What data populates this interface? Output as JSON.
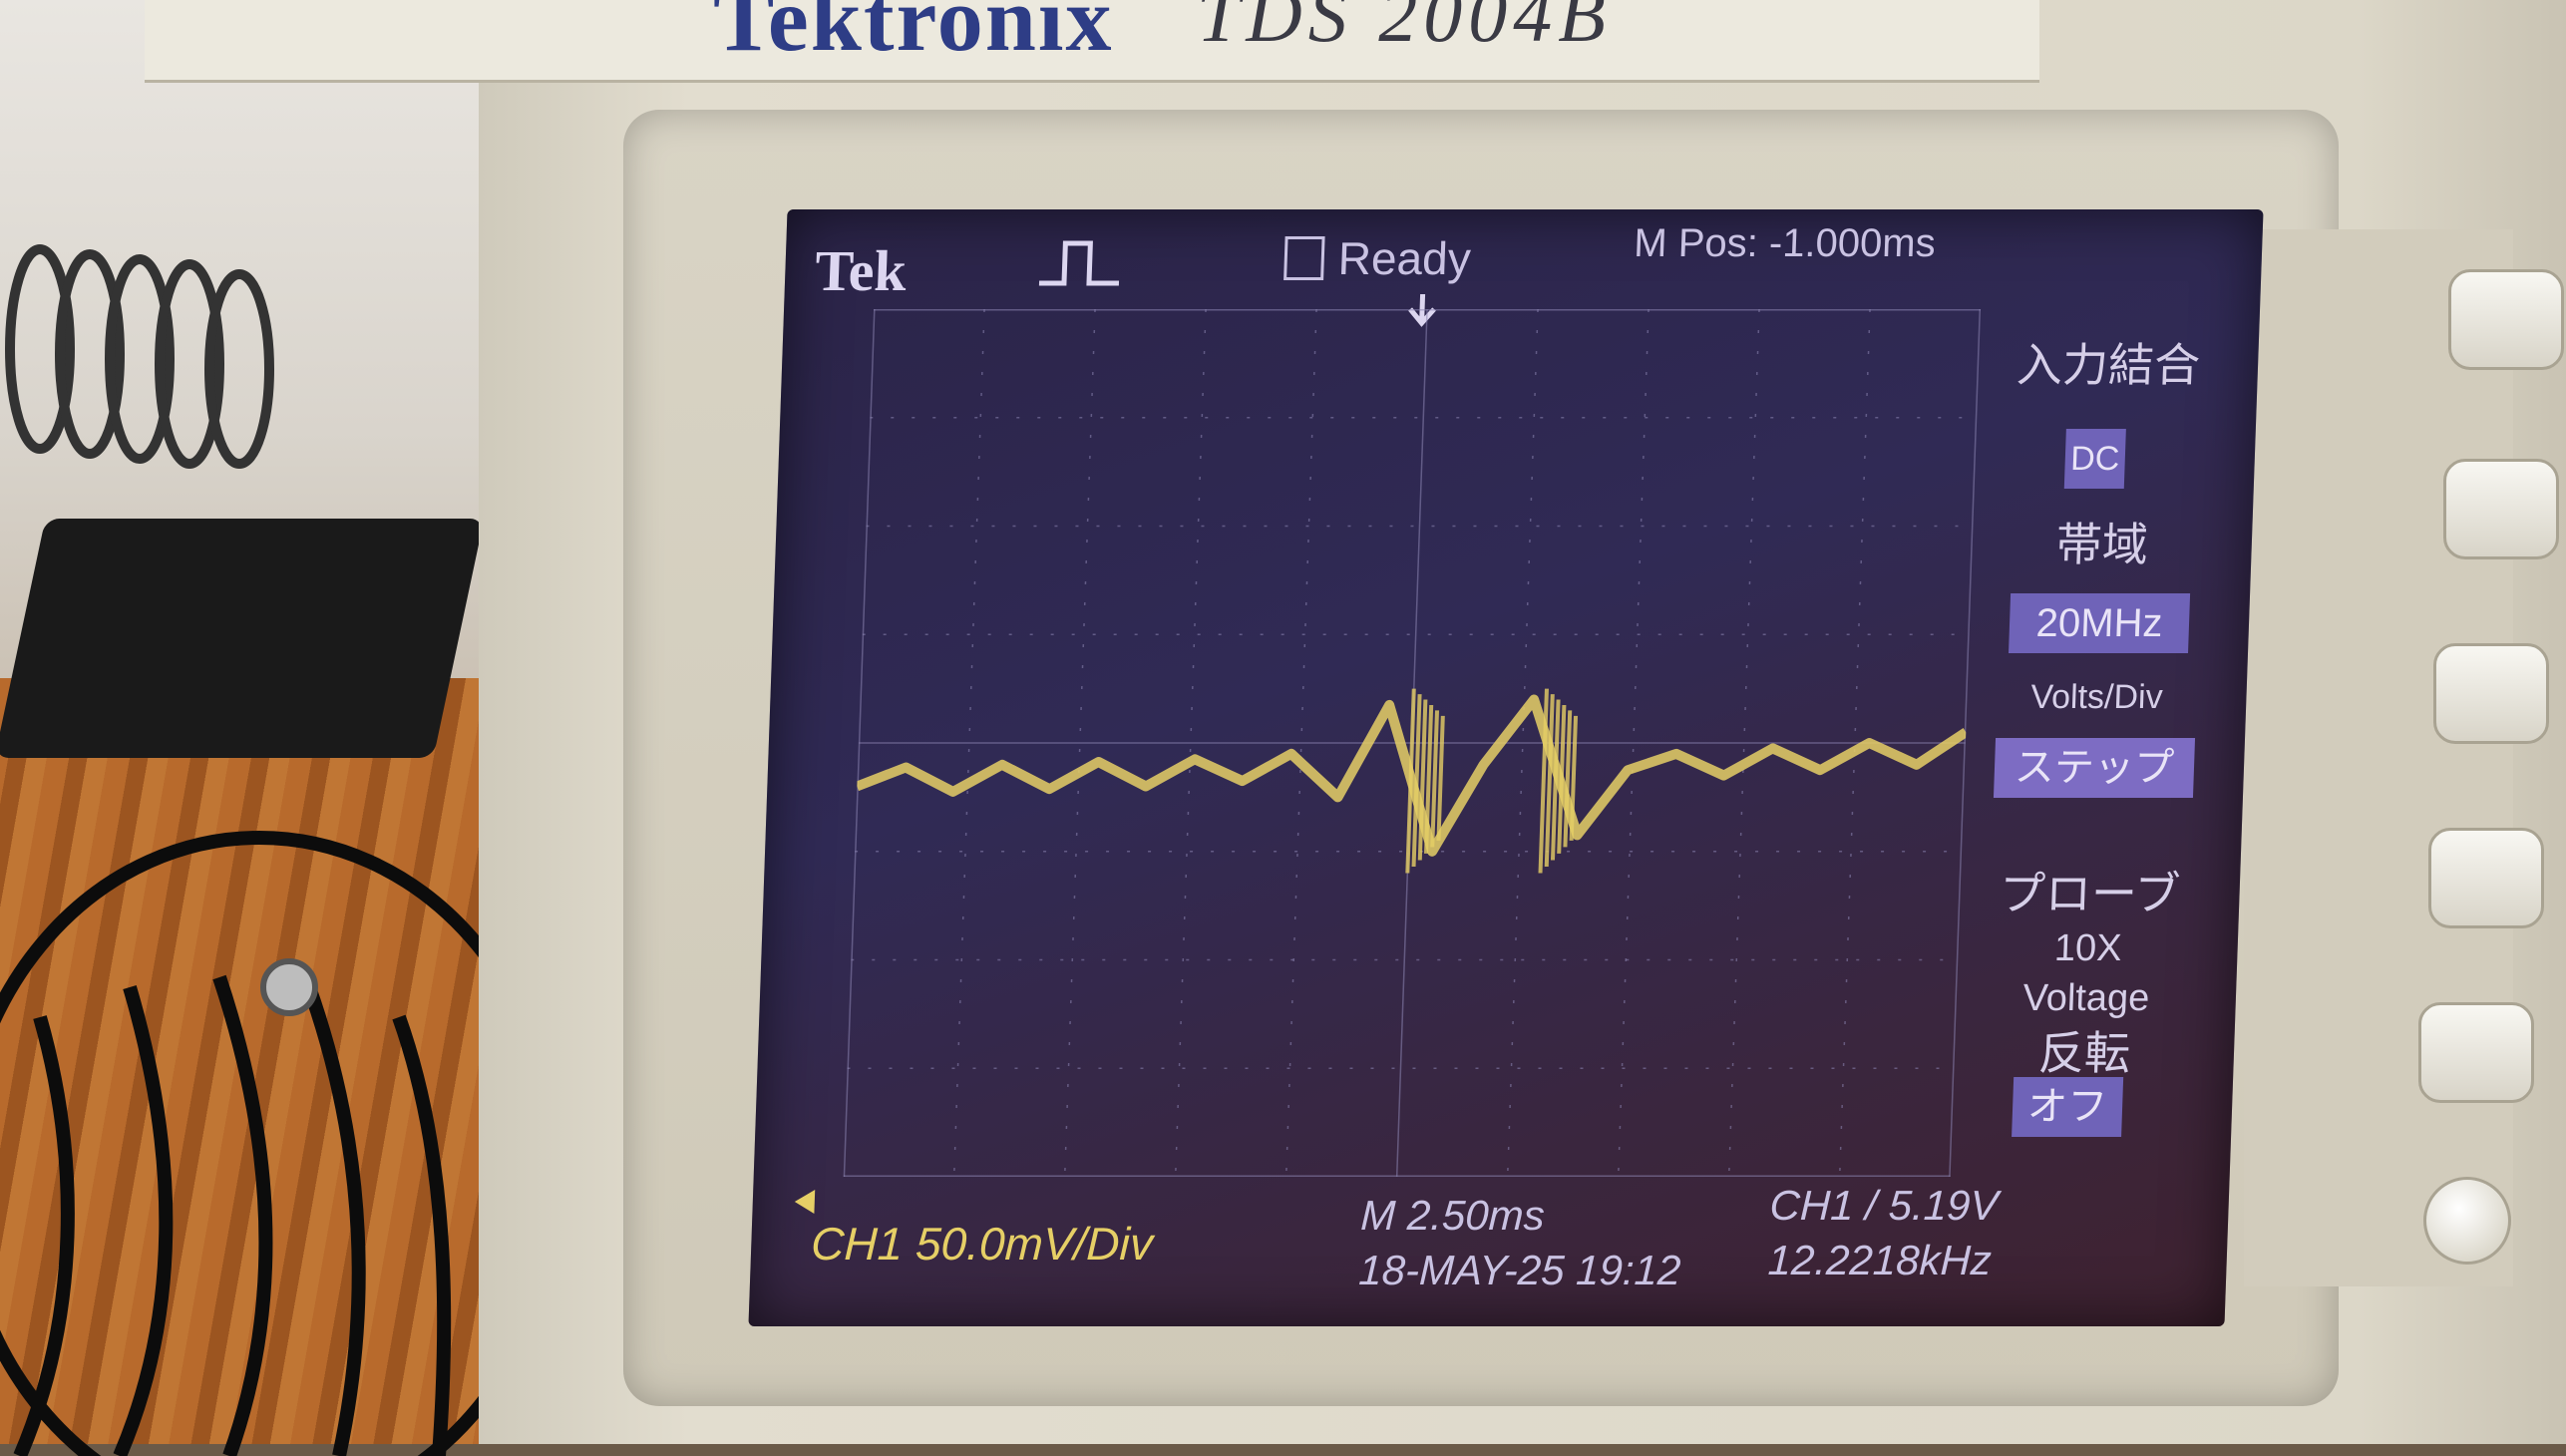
{
  "brand": {
    "logo": "Tektronix",
    "model": "TDS 2004B"
  },
  "status_bar": {
    "brand_label": "Tek",
    "acquisition_status": "Ready",
    "horizontal_position": "M Pos: -1.000ms"
  },
  "side_menu": {
    "coupling_title": "入力結合",
    "coupling_value": "DC",
    "bandwidth_title": "帯域",
    "bandwidth_value": "20MHz",
    "volts_div_title": "Volts/Div",
    "volts_div_value": "ステップ",
    "probe_title": "プローブ",
    "probe_value_1": "10X",
    "probe_value_2": "Voltage",
    "invert_title": "反転",
    "invert_value": "オフ"
  },
  "readouts": {
    "ch1_scale": "CH1 50.0mV/Div",
    "timebase": "M 2.50ms",
    "date_time": "18-MAY-25 19:12",
    "trigger": "CH1 / 5.19V",
    "frequency": "12.2218kHz"
  },
  "colors": {
    "trace": "#e6cf66",
    "screen": "#2b2448",
    "menu_highlight": "#6f63b8"
  },
  "trace": {
    "channel": "CH1",
    "description_values": {
      "baseline": [
        0.0,
        0.35,
        -0.1,
        0.4,
        -0.05,
        0.45,
        0.0,
        0.5,
        0.1,
        0.6,
        -0.2,
        1.5,
        -1.2,
        0.4,
        1.6,
        -0.9,
        0.3,
        0.6,
        0.2,
        0.7,
        0.3,
        0.8,
        0.4,
        1.0
      ],
      "note_units": "divisions"
    }
  }
}
